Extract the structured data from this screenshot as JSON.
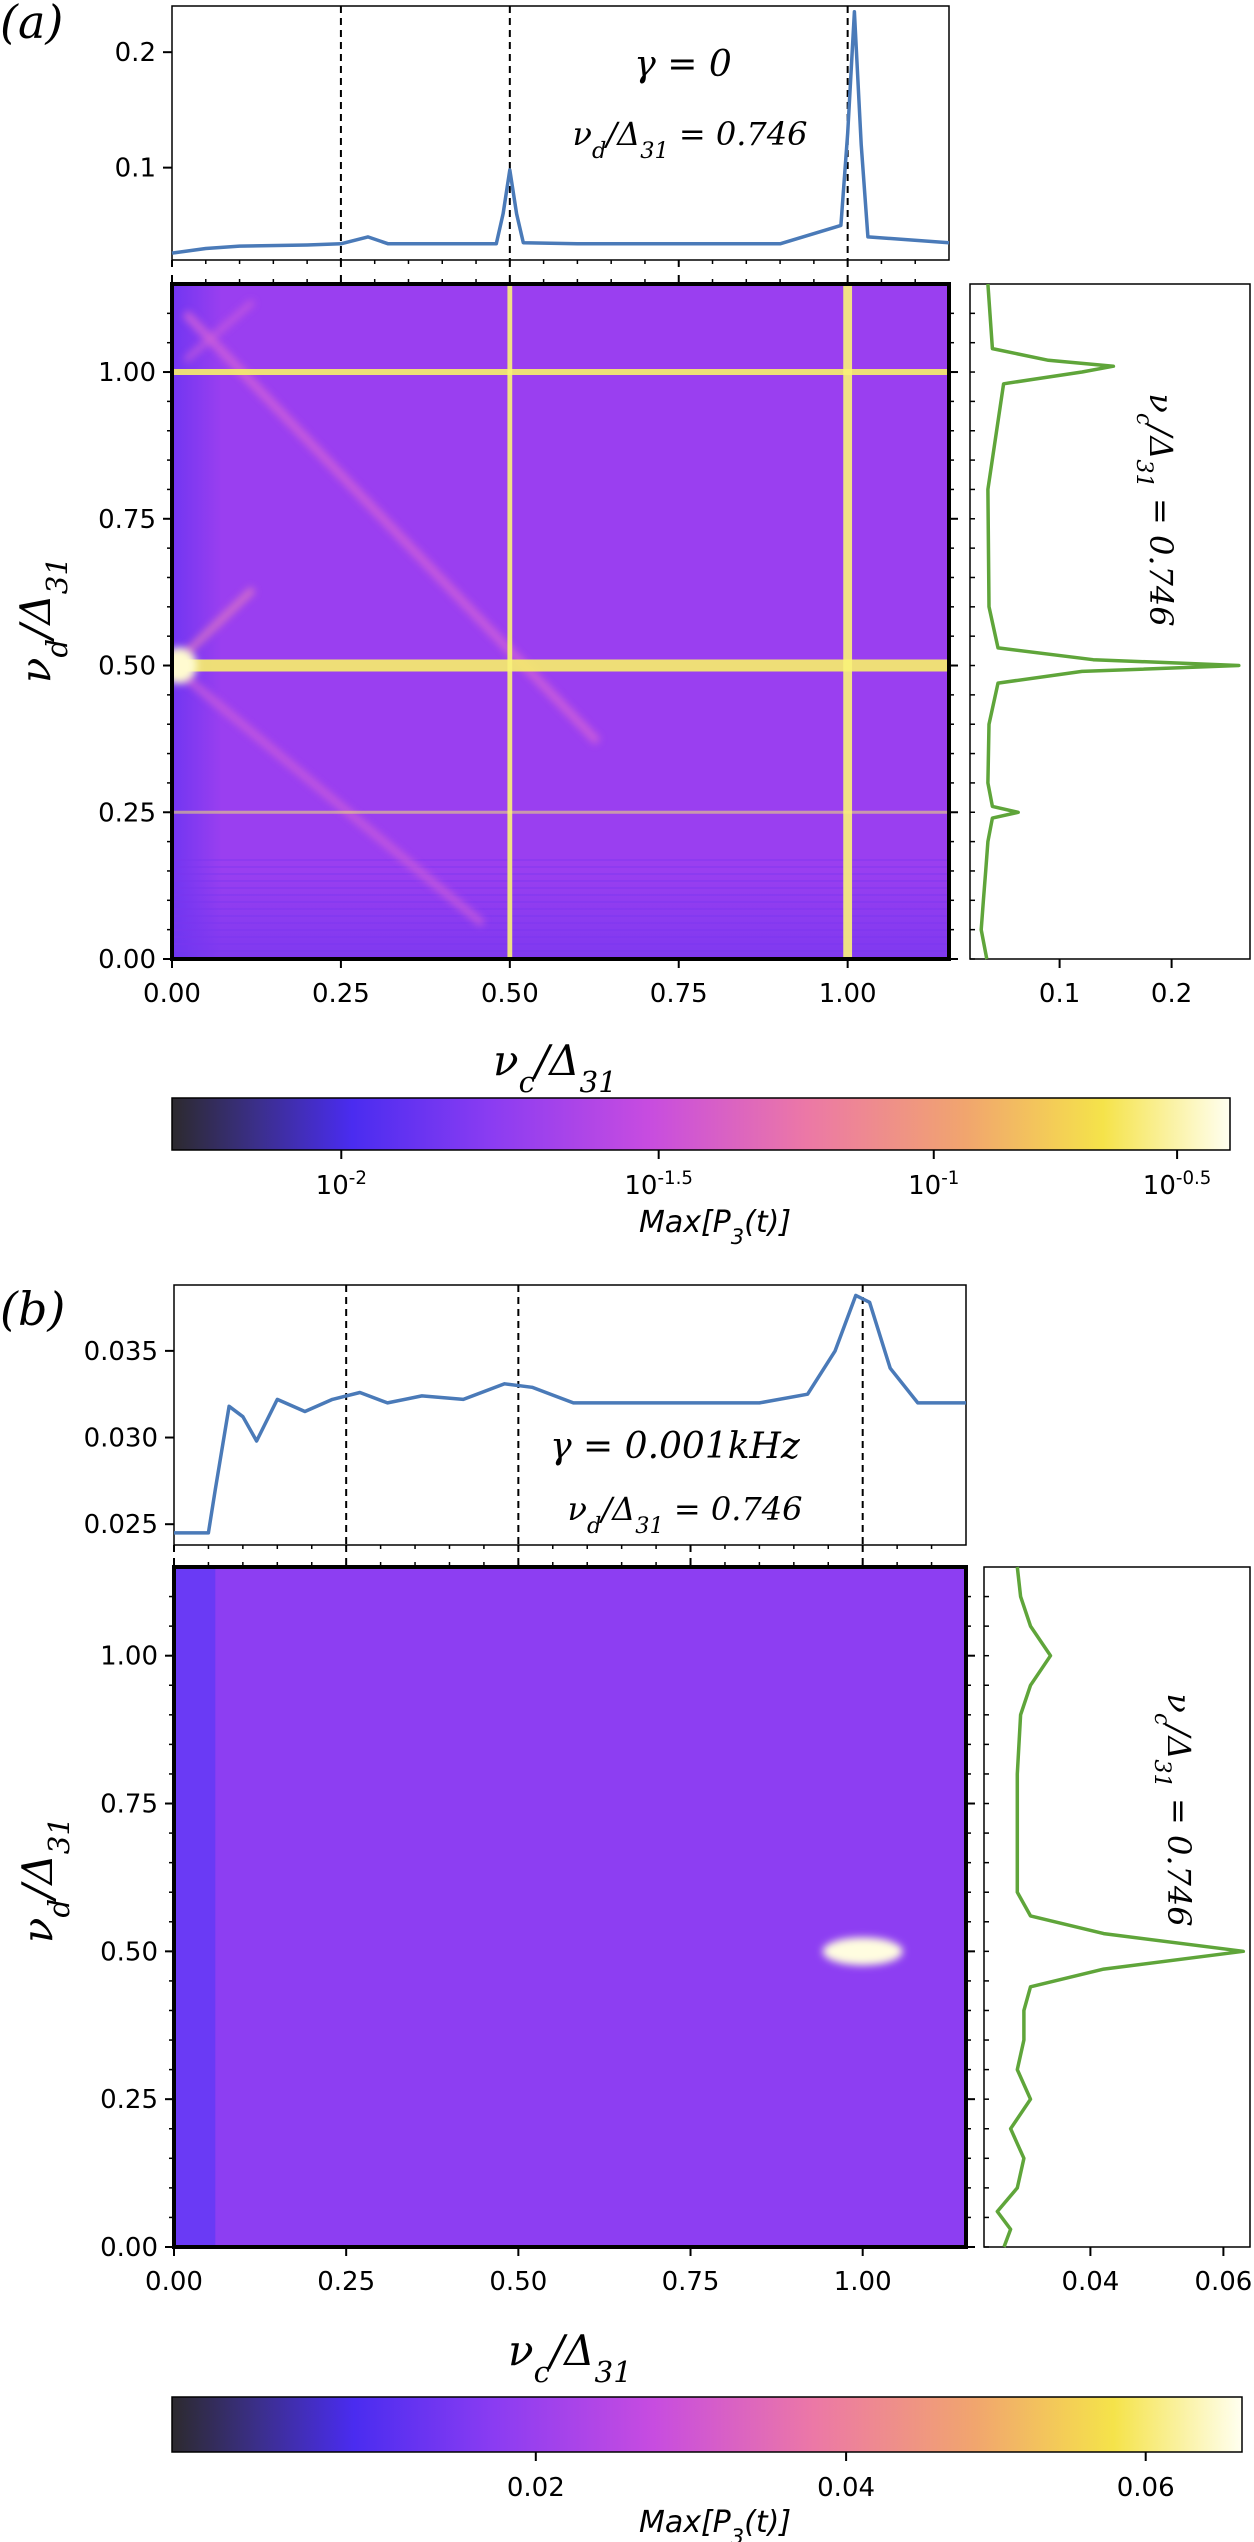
{
  "chart_data": [
    {
      "type": "heatmap",
      "panel_label": "(a)",
      "gamma_label": "γ = 0",
      "nud_label": "ν_d/Δ_31 = 0.746",
      "nuc_label": "ν_c/Δ_31 = 0.746",
      "xlabel": "ν_c/Δ_31",
      "ylabel": "ν_d/Δ_31",
      "xlim": [
        0,
        1.15
      ],
      "ylim": [
        0,
        1.15
      ],
      "x_ticks": [
        "0.00",
        "0.25",
        "0.50",
        "0.75",
        "1.00"
      ],
      "y_ticks": [
        "0.00",
        "0.25",
        "0.50",
        "0.75",
        "1.00"
      ],
      "resonance_lines": [
        0.25,
        0.5,
        1.0
      ],
      "top_cut": {
        "ylim": [
          0.02,
          0.24
        ],
        "y_ticks": [
          "0.1",
          "0.2"
        ],
        "dashed_x": [
          0.25,
          0.5,
          1.0
        ],
        "x": [
          0,
          0.05,
          0.1,
          0.2,
          0.25,
          0.29,
          0.32,
          0.48,
          0.49,
          0.5,
          0.51,
          0.52,
          0.6,
          0.9,
          0.99,
          1.0,
          1.01,
          1.02,
          1.03,
          1.15
        ],
        "y": [
          0.026,
          0.03,
          0.032,
          0.033,
          0.034,
          0.04,
          0.034,
          0.034,
          0.06,
          0.098,
          0.06,
          0.035,
          0.034,
          0.034,
          0.05,
          0.13,
          0.235,
          0.12,
          0.04,
          0.035
        ]
      },
      "side_cut": {
        "xlim": [
          0.02,
          0.27
        ],
        "x_ticks": [
          "0.1",
          "0.2"
        ],
        "y": [
          0,
          0.05,
          0.1,
          0.15,
          0.2,
          0.24,
          0.25,
          0.26,
          0.3,
          0.4,
          0.47,
          0.49,
          0.5,
          0.51,
          0.53,
          0.6,
          0.8,
          0.98,
          1.0,
          1.01,
          1.02,
          1.04,
          1.15
        ],
        "values": [
          0.035,
          0.03,
          0.032,
          0.034,
          0.036,
          0.04,
          0.063,
          0.04,
          0.036,
          0.037,
          0.045,
          0.12,
          0.26,
          0.13,
          0.045,
          0.037,
          0.036,
          0.05,
          0.12,
          0.148,
          0.09,
          0.04,
          0.036
        ]
      },
      "colorbar": {
        "label": "Max[P_3(t)]",
        "tick_labels": [
          "10^-2",
          "10^-1.5",
          "10^-1",
          "10^-0.5"
        ]
      }
    },
    {
      "type": "heatmap",
      "panel_label": "(b)",
      "gamma_label": "γ = 0.001kHz",
      "nud_label": "ν_d/Δ_31 = 0.746",
      "nuc_label": "ν_c/Δ_31 = 0.746",
      "xlabel": "ν_c/Δ_31",
      "ylabel": "ν_d/Δ_31",
      "xlim": [
        0,
        1.15
      ],
      "ylim": [
        0,
        1.15
      ],
      "x_ticks": [
        "0.00",
        "0.25",
        "0.50",
        "0.75",
        "1.00"
      ],
      "y_ticks": [
        "0.00",
        "0.25",
        "0.50",
        "0.75",
        "1.00"
      ],
      "resonance_lines": [
        0.25,
        0.5,
        1.0
      ],
      "top_cut": {
        "ylim": [
          0.0238,
          0.0388
        ],
        "y_ticks": [
          "0.025",
          "0.030",
          "0.035"
        ],
        "dashed_x": [
          0.25,
          0.5,
          1.0
        ],
        "x": [
          0,
          0.05,
          0.06,
          0.08,
          0.1,
          0.12,
          0.15,
          0.19,
          0.23,
          0.27,
          0.31,
          0.36,
          0.42,
          0.48,
          0.52,
          0.58,
          0.7,
          0.85,
          0.92,
          0.96,
          0.99,
          1.01,
          1.04,
          1.08,
          1.15
        ],
        "y": [
          0.0245,
          0.0245,
          0.027,
          0.0318,
          0.0312,
          0.0298,
          0.0322,
          0.0315,
          0.0322,
          0.0326,
          0.032,
          0.0324,
          0.0322,
          0.0331,
          0.0329,
          0.032,
          0.032,
          0.032,
          0.0325,
          0.035,
          0.0382,
          0.0378,
          0.034,
          0.032,
          0.032
        ]
      },
      "side_cut": {
        "xlim": [
          0.024,
          0.064
        ],
        "x_ticks": [
          "0.04",
          "0.06"
        ],
        "y": [
          0,
          0.03,
          0.06,
          0.1,
          0.15,
          0.2,
          0.25,
          0.3,
          0.35,
          0.4,
          0.44,
          0.47,
          0.5,
          0.53,
          0.56,
          0.6,
          0.7,
          0.8,
          0.9,
          0.95,
          1.0,
          1.05,
          1.1,
          1.15
        ],
        "values": [
          0.027,
          0.028,
          0.026,
          0.029,
          0.03,
          0.028,
          0.031,
          0.029,
          0.03,
          0.03,
          0.031,
          0.042,
          0.063,
          0.042,
          0.031,
          0.029,
          0.029,
          0.029,
          0.0295,
          0.031,
          0.034,
          0.031,
          0.0295,
          0.029
        ]
      },
      "colorbar": {
        "label": "Max[P_3(t)]",
        "tick_labels": [
          "0.02",
          "0.04",
          "0.06"
        ]
      }
    }
  ]
}
